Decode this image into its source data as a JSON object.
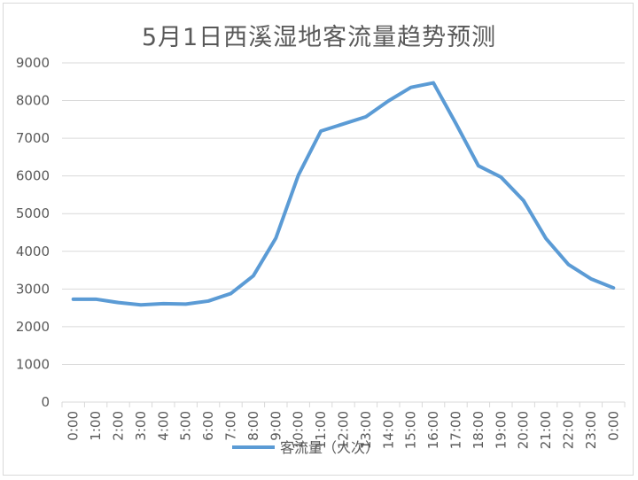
{
  "chart_data": {
    "type": "line",
    "title": "5月1日西溪湿地客流量趋势预测",
    "xlabel": "",
    "ylabel": "",
    "ylim": [
      0,
      9000
    ],
    "yticks": [
      0,
      1000,
      2000,
      3000,
      4000,
      5000,
      6000,
      7000,
      8000,
      9000
    ],
    "categories": [
      "0:00",
      "1:00",
      "2:00",
      "3:00",
      "4:00",
      "5:00",
      "6:00",
      "7:00",
      "8:00",
      "9:00",
      "10:00",
      "11:00",
      "12:00",
      "13:00",
      "14:00",
      "15:00",
      "16:00",
      "17:00",
      "18:00",
      "19:00",
      "20:00",
      "21:00",
      "22:00",
      "23:00",
      "0:00"
    ],
    "series": [
      {
        "name": "客流量（人次）",
        "color": "#5b9bd5",
        "values": [
          2730,
          2730,
          2640,
          2580,
          2610,
          2600,
          2680,
          2880,
          3350,
          4350,
          6020,
          7190,
          7380,
          7570,
          7990,
          8350,
          8470,
          7390,
          6270,
          5970,
          5350,
          4340,
          3650,
          3270,
          3030
        ]
      }
    ],
    "grid": true,
    "legend": "bottom"
  }
}
